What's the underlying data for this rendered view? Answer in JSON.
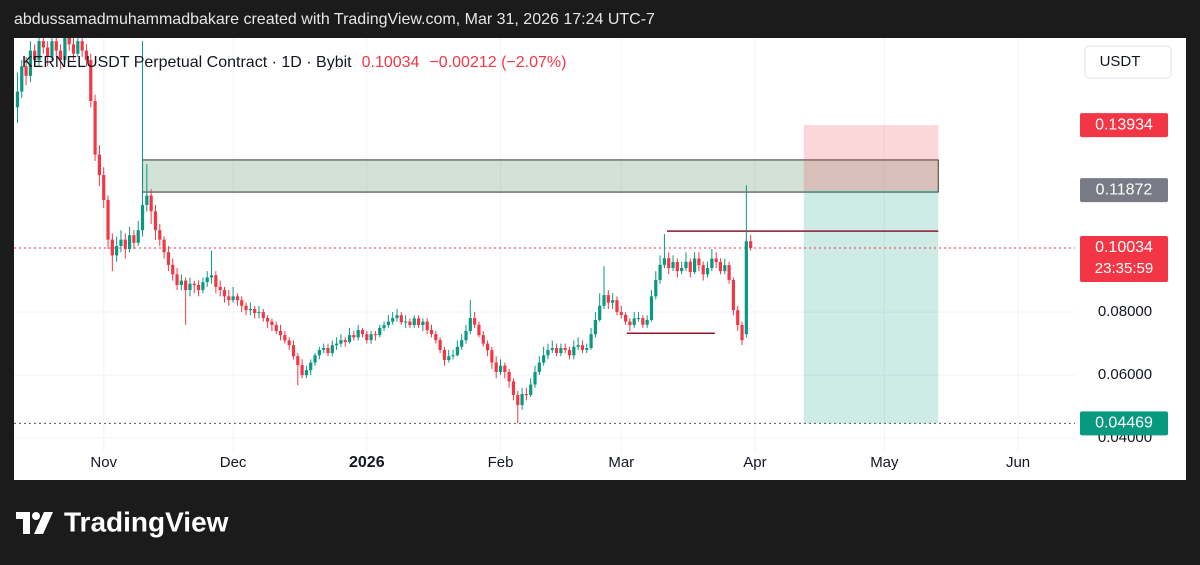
{
  "header": "abdussamadmuhammadbakare created with TradingView.com, Mar 31, 2026 17:24 UTC-7",
  "chart_data": {
    "type": "candlestick",
    "symbol": "KERNELUSDT Perpetual Contract · 1D · Bybit",
    "last_price": 0.10034,
    "change": "−0.00212 (−2.07%)",
    "countdown": "23:35:59",
    "currency": "USDT",
    "xlim": [
      -0.8,
      245.2
    ],
    "xticks": [
      {
        "value": 20,
        "label": "Nov"
      },
      {
        "value": 50,
        "label": "Dec"
      },
      {
        "value": 81,
        "label": "2026"
      },
      {
        "value": 112,
        "label": "Feb"
      },
      {
        "value": 140,
        "label": "Mar"
      },
      {
        "value": 171,
        "label": "Apr"
      },
      {
        "value": 201,
        "label": "May"
      },
      {
        "value": 232,
        "label": "Jun"
      }
    ],
    "ylim": [
      0.0356,
      0.167
    ],
    "yticks": [
      {
        "value": 0.04,
        "label": "0.04000"
      },
      {
        "value": 0.06,
        "label": "0.06000"
      },
      {
        "value": 0.08,
        "label": "0.08000"
      }
    ],
    "up_color": "#089981",
    "down_color": "#f23645",
    "candles": [
      [
        0.145,
        0.156,
        0.14,
        0.15
      ],
      [
        0.15,
        0.16,
        0.148,
        0.158
      ],
      [
        0.158,
        0.161,
        0.152,
        0.155
      ],
      [
        0.155,
        0.166,
        0.153,
        0.163
      ],
      [
        0.163,
        0.165,
        0.158,
        0.16
      ],
      [
        0.16,
        0.168,
        0.158,
        0.166
      ],
      [
        0.166,
        0.168,
        0.162,
        0.164
      ],
      [
        0.164,
        0.166,
        0.158,
        0.161
      ],
      [
        0.161,
        0.168,
        0.16,
        0.166
      ],
      [
        0.166,
        0.168,
        0.161,
        0.163
      ],
      [
        0.163,
        0.165,
        0.157,
        0.16
      ],
      [
        0.16,
        0.168,
        0.159,
        0.167
      ],
      [
        0.167,
        0.168,
        0.163,
        0.165
      ],
      [
        0.165,
        0.167,
        0.16,
        0.162
      ],
      [
        0.162,
        0.168,
        0.161,
        0.166
      ],
      [
        0.166,
        0.168,
        0.161,
        0.163
      ],
      [
        0.163,
        0.165,
        0.158,
        0.16
      ],
      [
        0.16,
        0.162,
        0.145,
        0.147
      ],
      [
        0.147,
        0.149,
        0.128,
        0.13
      ],
      [
        0.13,
        0.133,
        0.12,
        0.1235
      ],
      [
        0.1235,
        0.126,
        0.113,
        0.1156
      ],
      [
        0.1156,
        0.117,
        0.1,
        0.103
      ],
      [
        0.103,
        0.105,
        0.093,
        0.098
      ],
      [
        0.098,
        0.104,
        0.096,
        0.101
      ],
      [
        0.101,
        0.106,
        0.099,
        0.103
      ],
      [
        0.103,
        0.105,
        0.097,
        0.1
      ],
      [
        0.1,
        0.107,
        0.099,
        0.1044
      ],
      [
        0.1044,
        0.106,
        0.1,
        0.102
      ],
      [
        0.102,
        0.109,
        0.101,
        0.106
      ],
      [
        0.106,
        0.166,
        0.104,
        0.114
      ],
      [
        0.114,
        0.127,
        0.112,
        0.117
      ],
      [
        0.117,
        0.119,
        0.108,
        0.112
      ],
      [
        0.112,
        0.114,
        0.103,
        0.106
      ],
      [
        0.106,
        0.108,
        0.101,
        0.103
      ],
      [
        0.103,
        0.104,
        0.097,
        0.099
      ],
      [
        0.099,
        0.101,
        0.093,
        0.095
      ],
      [
        0.095,
        0.097,
        0.09,
        0.092
      ],
      [
        0.092,
        0.094,
        0.087,
        0.0886
      ],
      [
        0.0886,
        0.092,
        0.087,
        0.09
      ],
      [
        0.09,
        0.091,
        0.076,
        0.087
      ],
      [
        0.087,
        0.091,
        0.085,
        0.089
      ],
      [
        0.089,
        0.09,
        0.086,
        0.0886
      ],
      [
        0.0886,
        0.09,
        0.085,
        0.087
      ],
      [
        0.087,
        0.091,
        0.086,
        0.0895
      ],
      [
        0.0895,
        0.093,
        0.088,
        0.091
      ],
      [
        0.091,
        0.0995,
        0.089,
        0.0917
      ],
      [
        0.0917,
        0.093,
        0.086,
        0.088
      ],
      [
        0.088,
        0.09,
        0.085,
        0.087
      ],
      [
        0.087,
        0.088,
        0.083,
        0.085
      ],
      [
        0.085,
        0.087,
        0.082,
        0.0838
      ],
      [
        0.0838,
        0.088,
        0.083,
        0.085
      ],
      [
        0.085,
        0.086,
        0.082,
        0.0838
      ],
      [
        0.0838,
        0.085,
        0.08,
        0.082
      ],
      [
        0.082,
        0.083,
        0.079,
        0.0806
      ],
      [
        0.0806,
        0.083,
        0.079,
        0.081
      ],
      [
        0.081,
        0.082,
        0.078,
        0.0797
      ],
      [
        0.0797,
        0.082,
        0.078,
        0.08
      ],
      [
        0.08,
        0.081,
        0.077,
        0.0781
      ],
      [
        0.0781,
        0.079,
        0.075,
        0.077
      ],
      [
        0.077,
        0.078,
        0.074,
        0.0759
      ],
      [
        0.0759,
        0.077,
        0.073,
        0.074
      ],
      [
        0.074,
        0.076,
        0.071,
        0.0727
      ],
      [
        0.0727,
        0.074,
        0.07,
        0.071
      ],
      [
        0.071,
        0.072,
        0.068,
        0.0695
      ],
      [
        0.0695,
        0.071,
        0.065,
        0.066
      ],
      [
        0.066,
        0.067,
        0.0568,
        0.0632
      ],
      [
        0.0632,
        0.065,
        0.059,
        0.06
      ],
      [
        0.06,
        0.063,
        0.059,
        0.0616
      ],
      [
        0.0616,
        0.065,
        0.06,
        0.064
      ],
      [
        0.064,
        0.067,
        0.063,
        0.0663
      ],
      [
        0.0663,
        0.069,
        0.065,
        0.068
      ],
      [
        0.068,
        0.07,
        0.067,
        0.0686
      ],
      [
        0.0686,
        0.07,
        0.066,
        0.067
      ],
      [
        0.067,
        0.071,
        0.066,
        0.0695
      ],
      [
        0.0695,
        0.072,
        0.068,
        0.07
      ],
      [
        0.07,
        0.073,
        0.069,
        0.0711
      ],
      [
        0.0711,
        0.072,
        0.069,
        0.0705
      ],
      [
        0.0705,
        0.075,
        0.07,
        0.0727
      ],
      [
        0.0727,
        0.074,
        0.071,
        0.072
      ],
      [
        0.072,
        0.076,
        0.071,
        0.0743
      ],
      [
        0.0743,
        0.075,
        0.072,
        0.073
      ],
      [
        0.073,
        0.074,
        0.07,
        0.0711
      ],
      [
        0.0711,
        0.074,
        0.07,
        0.073
      ],
      [
        0.073,
        0.074,
        0.071,
        0.0727
      ],
      [
        0.0727,
        0.076,
        0.072,
        0.075
      ],
      [
        0.075,
        0.077,
        0.074,
        0.0759
      ],
      [
        0.0759,
        0.079,
        0.075,
        0.077
      ],
      [
        0.077,
        0.08,
        0.076,
        0.0781
      ],
      [
        0.0781,
        0.081,
        0.077,
        0.079
      ],
      [
        0.079,
        0.08,
        0.076,
        0.0768
      ],
      [
        0.0768,
        0.079,
        0.075,
        0.077
      ],
      [
        0.077,
        0.078,
        0.075,
        0.0759
      ],
      [
        0.0759,
        0.079,
        0.075,
        0.078
      ],
      [
        0.078,
        0.079,
        0.075,
        0.0759
      ],
      [
        0.0759,
        0.078,
        0.074,
        0.077
      ],
      [
        0.077,
        0.078,
        0.073,
        0.0743
      ],
      [
        0.0743,
        0.076,
        0.072,
        0.073
      ],
      [
        0.073,
        0.074,
        0.07,
        0.0711
      ],
      [
        0.0711,
        0.072,
        0.067,
        0.068
      ],
      [
        0.068,
        0.069,
        0.063,
        0.0648
      ],
      [
        0.0648,
        0.068,
        0.064,
        0.066
      ],
      [
        0.066,
        0.068,
        0.065,
        0.0663
      ],
      [
        0.0663,
        0.071,
        0.066,
        0.069
      ],
      [
        0.069,
        0.073,
        0.068,
        0.0711
      ],
      [
        0.0711,
        0.076,
        0.07,
        0.074
      ],
      [
        0.074,
        0.0838,
        0.073,
        0.0781
      ],
      [
        0.0781,
        0.08,
        0.075,
        0.076
      ],
      [
        0.076,
        0.077,
        0.072,
        0.0727
      ],
      [
        0.0727,
        0.074,
        0.069,
        0.07
      ],
      [
        0.07,
        0.071,
        0.066,
        0.0679
      ],
      [
        0.0679,
        0.069,
        0.062,
        0.064
      ],
      [
        0.064,
        0.066,
        0.059,
        0.061
      ],
      [
        0.061,
        0.065,
        0.06,
        0.063
      ],
      [
        0.063,
        0.064,
        0.059,
        0.061
      ],
      [
        0.061,
        0.062,
        0.056,
        0.058
      ],
      [
        0.058,
        0.059,
        0.052,
        0.0537
      ],
      [
        0.0537,
        0.055,
        0.0447,
        0.0505
      ],
      [
        0.0505,
        0.056,
        0.049,
        0.054
      ],
      [
        0.054,
        0.056,
        0.052,
        0.0537
      ],
      [
        0.0537,
        0.059,
        0.053,
        0.057
      ],
      [
        0.057,
        0.063,
        0.056,
        0.061
      ],
      [
        0.061,
        0.066,
        0.06,
        0.064
      ],
      [
        0.064,
        0.069,
        0.063,
        0.0663
      ],
      [
        0.0663,
        0.07,
        0.065,
        0.068
      ],
      [
        0.068,
        0.071,
        0.067,
        0.0686
      ],
      [
        0.0686,
        0.07,
        0.066,
        0.067
      ],
      [
        0.067,
        0.07,
        0.066,
        0.0686
      ],
      [
        0.0686,
        0.07,
        0.067,
        0.068
      ],
      [
        0.068,
        0.069,
        0.065,
        0.0663
      ],
      [
        0.0663,
        0.071,
        0.065,
        0.069
      ],
      [
        0.069,
        0.072,
        0.068,
        0.0695
      ],
      [
        0.0695,
        0.071,
        0.067,
        0.068
      ],
      [
        0.068,
        0.07,
        0.067,
        0.0686
      ],
      [
        0.0686,
        0.075,
        0.068,
        0.073
      ],
      [
        0.073,
        0.08,
        0.072,
        0.0775
      ],
      [
        0.0775,
        0.086,
        0.077,
        0.082
      ],
      [
        0.082,
        0.0946,
        0.081,
        0.0854
      ],
      [
        0.0854,
        0.087,
        0.081,
        0.083
      ],
      [
        0.083,
        0.086,
        0.081,
        0.0838
      ],
      [
        0.0838,
        0.085,
        0.079,
        0.08
      ],
      [
        0.08,
        0.082,
        0.078,
        0.0791
      ],
      [
        0.0791,
        0.08,
        0.076,
        0.077
      ],
      [
        0.077,
        0.078,
        0.074,
        0.0759
      ],
      [
        0.0759,
        0.08,
        0.075,
        0.078
      ],
      [
        0.078,
        0.08,
        0.077,
        0.0781
      ],
      [
        0.0781,
        0.079,
        0.075,
        0.076
      ],
      [
        0.076,
        0.079,
        0.075,
        0.0775
      ],
      [
        0.0775,
        0.087,
        0.077,
        0.085
      ],
      [
        0.085,
        0.093,
        0.084,
        0.0902
      ],
      [
        0.0902,
        0.098,
        0.089,
        0.095
      ],
      [
        0.095,
        0.1048,
        0.094,
        0.0971
      ],
      [
        0.0971,
        0.099,
        0.092,
        0.094
      ],
      [
        0.094,
        0.098,
        0.093,
        0.0959
      ],
      [
        0.0959,
        0.097,
        0.091,
        0.093
      ],
      [
        0.093,
        0.096,
        0.092,
        0.094
      ],
      [
        0.094,
        0.099,
        0.093,
        0.096
      ],
      [
        0.096,
        0.097,
        0.091,
        0.0927
      ],
      [
        0.0927,
        0.099,
        0.092,
        0.097
      ],
      [
        0.097,
        0.099,
        0.093,
        0.0949
      ],
      [
        0.0949,
        0.096,
        0.09,
        0.092
      ],
      [
        0.092,
        0.096,
        0.091,
        0.094
      ],
      [
        0.094,
        0.1,
        0.093,
        0.097
      ],
      [
        0.097,
        0.099,
        0.094,
        0.0959
      ],
      [
        0.0959,
        0.097,
        0.092,
        0.093
      ],
      [
        0.093,
        0.097,
        0.092,
        0.0949
      ],
      [
        0.0949,
        0.096,
        0.089,
        0.0902
      ],
      [
        0.0902,
        0.091,
        0.079,
        0.0806
      ],
      [
        0.0806,
        0.082,
        0.074,
        0.0759
      ],
      [
        0.0759,
        0.077,
        0.0695,
        0.0711
      ],
      [
        0.073,
        0.1203,
        0.072,
        0.1025
      ],
      [
        0.1025,
        0.1045,
        0.0995,
        0.10034
      ]
    ],
    "zone": {
      "from": 29,
      "to": 213.5,
      "top": 0.1283,
      "bottom": 0.1181
    },
    "position": {
      "from": 182.3,
      "to": 213.5,
      "entry": 0.11872,
      "stop": 0.13934,
      "target": 0.04469
    },
    "levels": [
      {
        "from": 150.6,
        "to": 213.5,
        "value": 0.1057
      },
      {
        "from": 141.3,
        "to": 161.7,
        "value": 0.0733
      }
    ]
  },
  "footer": "TradingView"
}
